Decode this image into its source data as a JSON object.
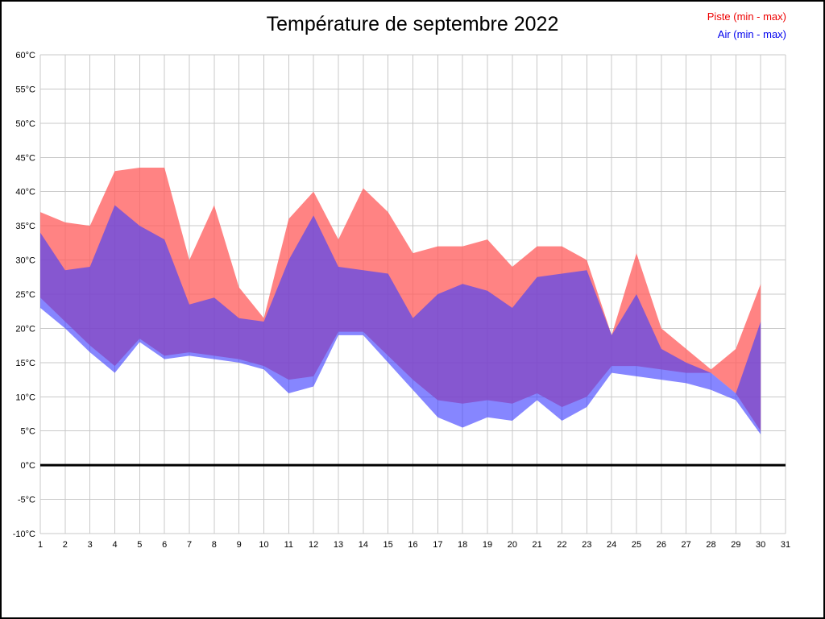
{
  "chart_data": {
    "type": "area",
    "title": "Température de septembre 2022",
    "unit": "°C",
    "xlim": [
      1,
      31
    ],
    "ylim": [
      -10,
      60
    ],
    "x_ticks": [
      1,
      2,
      3,
      4,
      5,
      6,
      7,
      8,
      9,
      10,
      11,
      12,
      13,
      14,
      15,
      16,
      17,
      18,
      19,
      20,
      21,
      22,
      23,
      24,
      25,
      26,
      27,
      28,
      29,
      30,
      31
    ],
    "y_ticks": [
      60,
      55,
      50,
      45,
      40,
      35,
      30,
      25,
      20,
      15,
      10,
      5,
      0,
      -5,
      -10
    ],
    "grid": true,
    "grid_color": "#c8c8c8",
    "tick_label_color": "#000000",
    "zero_line": true,
    "zero_line_color": "#000000",
    "legend_position": "top-right",
    "x": [
      1,
      2,
      3,
      4,
      5,
      6,
      7,
      8,
      9,
      10,
      11,
      12,
      13,
      14,
      15,
      16,
      17,
      18,
      19,
      20,
      21,
      22,
      23,
      24,
      25,
      26,
      27,
      28,
      29,
      30
    ],
    "series": [
      {
        "name": "Piste (min - max)",
        "legend_color": "#ee0000",
        "fill": "#ff6060",
        "opacity": 0.78,
        "max": [
          37,
          35.5,
          35,
          43,
          43.5,
          43.5,
          30,
          38,
          26,
          21.5,
          36,
          40,
          33,
          40.5,
          37,
          31,
          32,
          32,
          33,
          29,
          32,
          32,
          30,
          19,
          31,
          20,
          17,
          14,
          17,
          26.5
        ],
        "min": [
          24.5,
          21,
          17.5,
          14.5,
          18.5,
          16,
          16.5,
          16,
          15.5,
          14.5,
          12.5,
          13,
          19.5,
          19.5,
          16,
          12.5,
          9.5,
          9,
          9.5,
          9,
          10.5,
          8.5,
          10,
          14.5,
          14.5,
          14,
          13.5,
          13.5,
          10.5,
          5
        ]
      },
      {
        "name": "Air (min - max)",
        "legend_color": "#0000ee",
        "fill": "#3c3cff",
        "opacity": 0.62,
        "max": [
          34,
          28.5,
          29,
          38,
          35,
          33,
          23.5,
          24.5,
          21.5,
          21,
          30,
          36.5,
          29,
          28.5,
          28,
          21.5,
          25,
          26.5,
          25.5,
          23,
          27.5,
          28,
          28.5,
          19,
          25,
          17,
          15,
          13.5,
          10.5,
          21
        ],
        "min": [
          23,
          20,
          16.5,
          13.5,
          18,
          15.5,
          16,
          15.5,
          15,
          14,
          10.5,
          11.5,
          19,
          19,
          15,
          11,
          7,
          5.5,
          7,
          6.5,
          9.5,
          6.5,
          8.5,
          13.5,
          13,
          12.5,
          12,
          11,
          9.5,
          4.5
        ]
      }
    ]
  }
}
